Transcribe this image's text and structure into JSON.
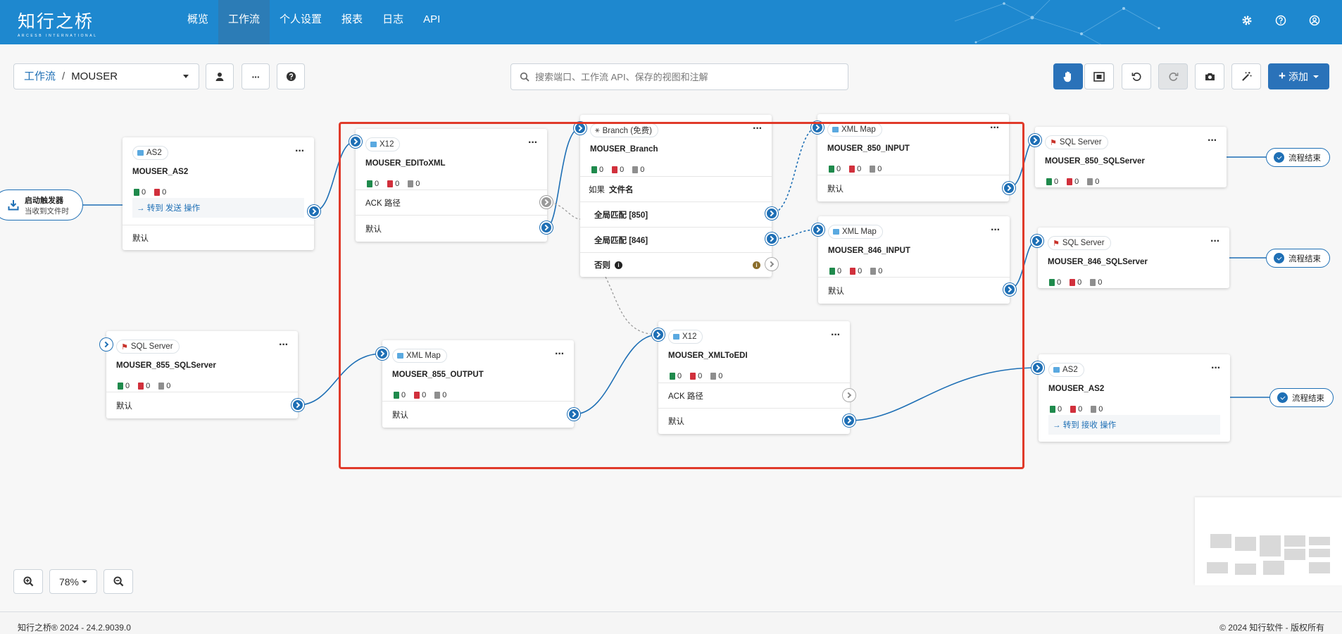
{
  "app": {
    "logo_text": "知行之桥",
    "logo_sub": "ARCESB INTERNATIONAL",
    "nav": [
      "概览",
      "工作流",
      "个人设置",
      "报表",
      "日志",
      "API"
    ],
    "active_nav": "工作流"
  },
  "toolbar": {
    "breadcrumb_link": "工作流",
    "breadcrumb_sep": "/",
    "breadcrumb_current": "MOUSER",
    "search_placeholder": "搜索端口、工作流 API、保存的视图和注解",
    "add_label": "添加"
  },
  "trigger": {
    "title": "启动触发器",
    "subtitle": "当收到文件时"
  },
  "cards": {
    "as2_in": {
      "type": "AS2",
      "name": "MOUSER_AS2",
      "counts": [
        "0",
        "0"
      ],
      "link": "→ 转到 发送 操作",
      "row_default": "默认"
    },
    "x12_in": {
      "type": "X12",
      "name": "MOUSER_EDIToXML",
      "counts": [
        "0",
        "0",
        "0"
      ],
      "row_ack": "ACK 路径",
      "row_default": "默认"
    },
    "branch": {
      "type": "Branch (免费)",
      "name": "MOUSER_Branch",
      "counts": [
        "0",
        "0",
        "0"
      ],
      "if_label": "如果",
      "if_field": "文件名",
      "case1": "全局匹配 [850]",
      "case2": "全局匹配 [846]",
      "else": "否则"
    },
    "map850": {
      "type": "XML Map",
      "name": "MOUSER_850_INPUT",
      "counts": [
        "0",
        "0",
        "0"
      ],
      "row_default": "默认"
    },
    "map846": {
      "type": "XML Map",
      "name": "MOUSER_846_INPUT",
      "counts": [
        "0",
        "0",
        "0"
      ],
      "row_default": "默认"
    },
    "sql850": {
      "type": "SQL Server",
      "name": "MOUSER_850_SQLServer",
      "counts": [
        "0",
        "0",
        "0"
      ]
    },
    "sql846": {
      "type": "SQL Server",
      "name": "MOUSER_846_SQLServer",
      "counts": [
        "0",
        "0",
        "0"
      ]
    },
    "sql855": {
      "type": "SQL Server",
      "name": "MOUSER_855_SQLServer",
      "counts": [
        "0",
        "0",
        "0"
      ],
      "row_default": "默认"
    },
    "map855": {
      "type": "XML Map",
      "name": "MOUSER_855_OUTPUT",
      "counts": [
        "0",
        "0",
        "0"
      ],
      "row_default": "默认"
    },
    "x12_out": {
      "type": "X12",
      "name": "MOUSER_XMLToEDI",
      "counts": [
        "0",
        "0",
        "0"
      ],
      "row_ack": "ACK 路径",
      "row_default": "默认"
    },
    "as2_out": {
      "type": "AS2",
      "name": "MOUSER_AS2",
      "counts": [
        "0",
        "0",
        "0"
      ],
      "link": "→ 转到 接收 操作"
    }
  },
  "end_label": "流程结束",
  "zoom": {
    "level": "78%"
  },
  "footer": {
    "left": "知行之桥® 2024 - 24.2.9039.0",
    "right": "© 2024 知行软件 - 版权所有"
  },
  "colors": {
    "header": "#1e88cf",
    "primary": "#1e6fb5",
    "highlight_box": "#e03a2a"
  }
}
